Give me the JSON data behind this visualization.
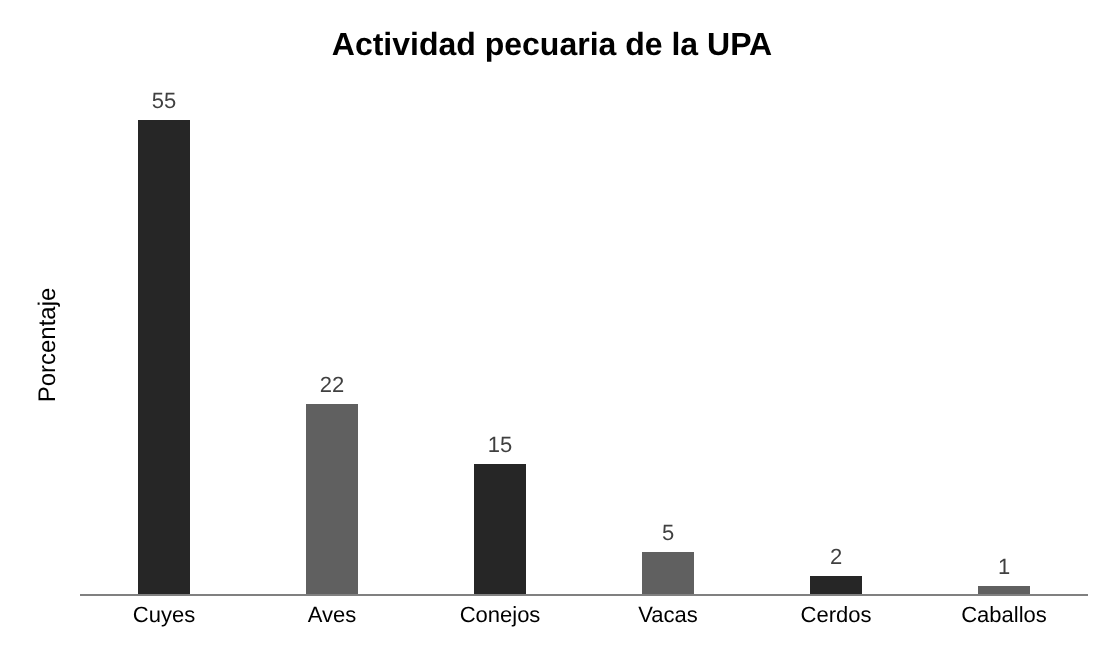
{
  "chart_data": {
    "type": "bar",
    "title": "Actividad pecuaria de la UPA",
    "ylabel": "Porcentaje",
    "categories": [
      "Cuyes",
      "Aves",
      "Conejos",
      "Vacas",
      "Cerdos",
      "Caballos"
    ],
    "values": [
      55,
      22,
      15,
      5,
      2,
      1
    ],
    "colors": [
      "#262626",
      "#606060",
      "#262626",
      "#606060",
      "#262626",
      "#606060"
    ],
    "data_labels": true,
    "tick_labels": "x"
  }
}
